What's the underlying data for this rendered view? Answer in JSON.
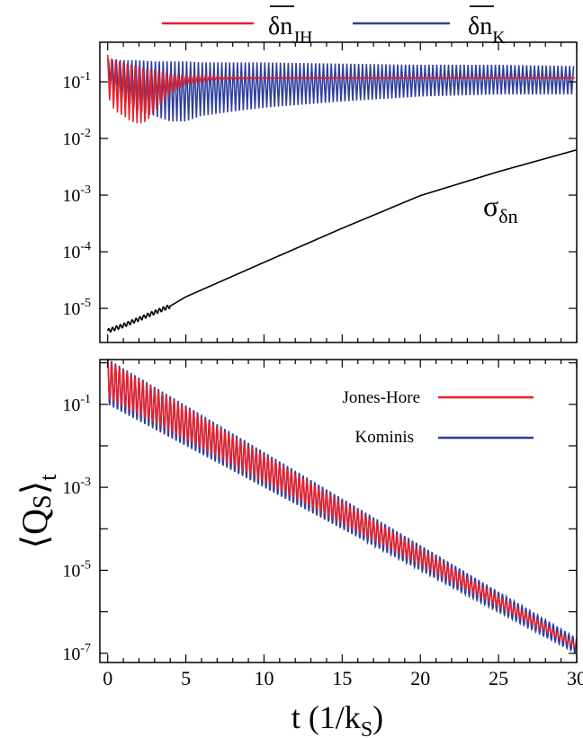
{
  "colors": {
    "jh": "#e8202a",
    "k": "#2e3f9c",
    "sigma": "#000000",
    "axis": "#000000"
  },
  "top_legend": {
    "jh_main": "δn",
    "jh_sub": "JH",
    "k_main": "δn",
    "k_sub": "K"
  },
  "chart_data": [
    {
      "type": "line",
      "panel": "top",
      "yscale": "log",
      "xlim": [
        -0.5,
        30
      ],
      "ylim": [
        2.5e-06,
        0.5
      ],
      "grid": false,
      "x_ticks": [
        0,
        5,
        10,
        15,
        20,
        25,
        30
      ],
      "y_ticks": [
        {
          "base": "10",
          "exp": "-1",
          "value": 0.1
        },
        {
          "base": "10",
          "exp": "-2",
          "value": 0.01
        },
        {
          "base": "10",
          "exp": "-3",
          "value": 0.001
        },
        {
          "base": "10",
          "exp": "-4",
          "value": 0.0001
        },
        {
          "base": "10",
          "exp": "-5",
          "value": 1e-05
        }
      ],
      "annotation": {
        "main": "σ",
        "sub": "δn"
      },
      "series": [
        {
          "key": "jh",
          "x": [
            0,
            0.1,
            0.2,
            0.5,
            1,
            1.5,
            2,
            2.5,
            3,
            4,
            5,
            7,
            10,
            15,
            20,
            25,
            30
          ],
          "upper": [
            0.3,
            0.28,
            0.26,
            0.24,
            0.22,
            0.2,
            0.19,
            0.17,
            0.16,
            0.14,
            0.13,
            0.125,
            0.12,
            0.12,
            0.12,
            0.12,
            0.12
          ],
          "lower": [
            0.06,
            0.05,
            0.04,
            0.03,
            0.025,
            0.02,
            0.018,
            0.02,
            0.03,
            0.06,
            0.09,
            0.11,
            0.115,
            0.115,
            0.115,
            0.115,
            0.115
          ]
        },
        {
          "key": "k",
          "x": [
            0,
            0.5,
            1,
            2,
            3,
            4,
            5,
            6,
            8,
            10,
            15,
            20,
            25,
            30
          ],
          "upper": [
            0.25,
            0.25,
            0.24,
            0.24,
            0.23,
            0.23,
            0.23,
            0.22,
            0.22,
            0.22,
            0.21,
            0.2,
            0.2,
            0.19
          ],
          "lower": [
            0.1,
            0.07,
            0.05,
            0.03,
            0.025,
            0.02,
            0.02,
            0.025,
            0.03,
            0.035,
            0.045,
            0.055,
            0.06,
            0.06
          ]
        },
        {
          "key": "sigma",
          "x": [
            0,
            1,
            2,
            3,
            4,
            5,
            10,
            15,
            20,
            25,
            30
          ],
          "values": [
            4e-06,
            5e-06,
            6.5e-06,
            8.5e-06,
            1.1e-05,
            1.6e-05,
            6.5e-05,
            0.00026,
            0.00098,
            0.0026,
            0.0063
          ]
        }
      ]
    },
    {
      "type": "line",
      "panel": "bottom",
      "yscale": "log",
      "xlim": [
        -0.5,
        30
      ],
      "ylim": [
        6e-08,
        1.2
      ],
      "grid": false,
      "ylabel": {
        "main": "Q",
        "sub1": "S",
        "sub2": "t"
      },
      "xlabel": {
        "main": "t (1/k",
        "sub": "S",
        "end": ")"
      },
      "x_ticks": [
        {
          "label": "0",
          "value": 0
        },
        {
          "label": "5",
          "value": 5
        },
        {
          "label": "10",
          "value": 10
        },
        {
          "label": "15",
          "value": 15
        },
        {
          "label": "20",
          "value": 20
        },
        {
          "label": "25",
          "value": 25
        },
        {
          "label": "30",
          "value": 30
        }
      ],
      "y_ticks": [
        {
          "base": "10",
          "exp": "-1",
          "value": 0.1
        },
        {
          "base": "10",
          "exp": "-3",
          "value": 0.001
        },
        {
          "base": "10",
          "exp": "-5",
          "value": 1e-05
        },
        {
          "base": "10",
          "exp": "-7",
          "value": 1e-07
        }
      ],
      "legend": {
        "placement": "top-right",
        "items": [
          {
            "key": "jh",
            "label": "Jones-Hore"
          },
          {
            "key": "k",
            "label": "Kominis"
          }
        ]
      },
      "series": [
        {
          "key": "k",
          "x": [
            0,
            30
          ],
          "center_start": 0.35,
          "center_end": 1.5e-07,
          "amp_start": 0.55,
          "amp_end": 0.18
        },
        {
          "key": "jh",
          "x": [
            0,
            30
          ],
          "center_start": 0.4,
          "center_end": 1.5e-07,
          "amp_start": 0.45,
          "amp_end": 0.05
        }
      ]
    }
  ]
}
